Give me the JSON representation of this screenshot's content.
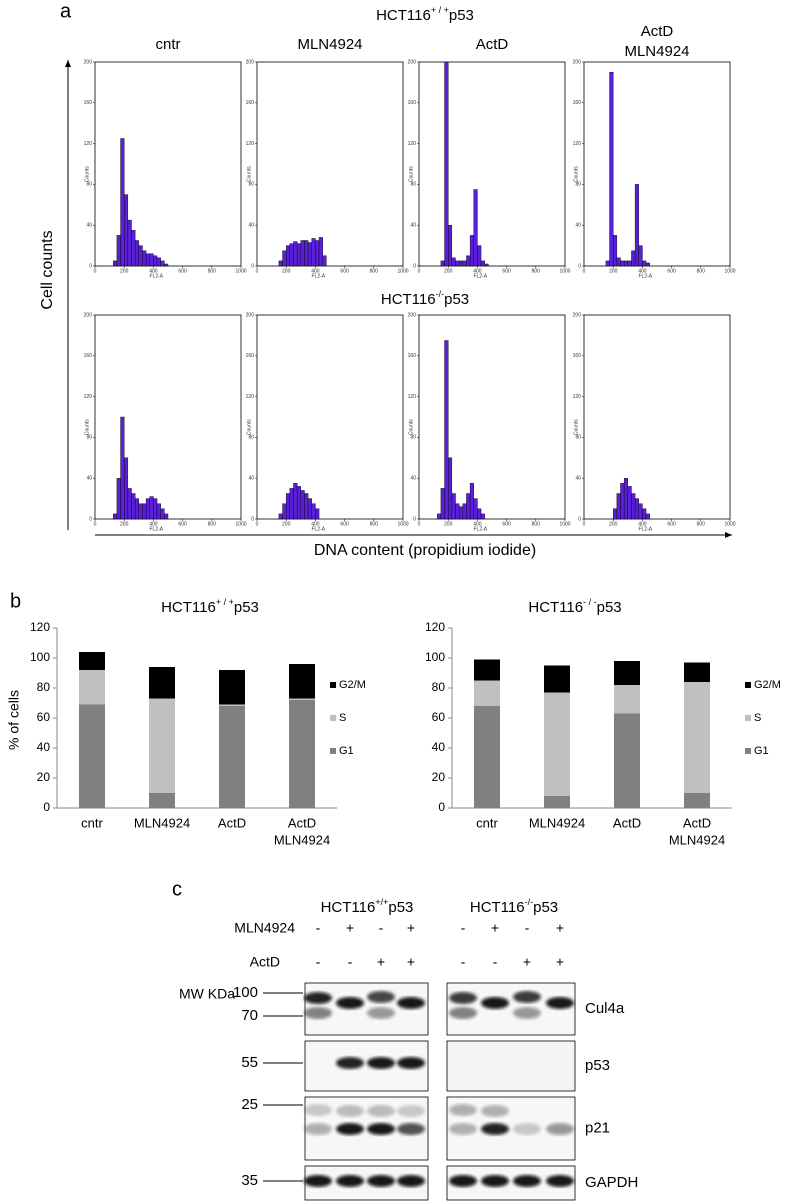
{
  "panel_a": {
    "letter": "a",
    "row_titles": [
      [
        "HCT116",
        "+ / +",
        "p53"
      ],
      [
        "HCT116",
        "-/-",
        "p53"
      ]
    ],
    "columns": [
      [
        "cntr"
      ],
      [
        "MLN4924"
      ],
      [
        "ActD"
      ],
      [
        "ActD",
        "MLN4924"
      ]
    ],
    "y_axis_label": "Cell counts",
    "x_axis_label": "DNA content (propidium iodide)",
    "histogram_axes": {
      "xlim": [
        0,
        1000
      ],
      "ylim": [
        0,
        200
      ],
      "xticks": [
        0,
        200,
        400,
        600,
        800,
        1000
      ],
      "yticks": [
        0,
        40,
        80,
        120,
        160,
        200
      ],
      "xlabel": "FL2-A",
      "ylabel": "Counts",
      "bins": [
        100,
        125,
        150,
        175,
        200,
        225,
        250,
        275,
        300,
        325,
        350,
        375,
        400,
        425,
        450,
        475,
        500,
        525,
        550
      ],
      "color": "#5a1fd8"
    },
    "histograms": [
      {
        "type": "histogram",
        "values": [
          0,
          5,
          30,
          125,
          70,
          45,
          35,
          25,
          20,
          15,
          12,
          12,
          10,
          8,
          5,
          2,
          0,
          0
        ]
      },
      {
        "type": "histogram",
        "values": [
          0,
          0,
          5,
          15,
          20,
          22,
          24,
          22,
          25,
          25,
          23,
          27,
          25,
          28,
          10,
          0,
          0,
          0
        ]
      },
      {
        "type": "histogram",
        "values": [
          0,
          0,
          5,
          200,
          40,
          8,
          5,
          5,
          5,
          10,
          30,
          75,
          20,
          5,
          2,
          0,
          0,
          0
        ]
      },
      {
        "type": "histogram",
        "values": [
          0,
          0,
          5,
          190,
          30,
          8,
          5,
          5,
          5,
          15,
          80,
          20,
          5,
          3,
          0,
          0,
          0,
          0
        ]
      },
      {
        "type": "histogram",
        "values": [
          0,
          5,
          40,
          100,
          60,
          30,
          25,
          20,
          15,
          15,
          20,
          22,
          20,
          15,
          10,
          5,
          0,
          0
        ]
      },
      {
        "type": "histogram",
        "values": [
          0,
          0,
          5,
          15,
          25,
          30,
          35,
          32,
          28,
          25,
          20,
          15,
          10,
          0,
          0,
          0,
          0,
          0
        ]
      },
      {
        "type": "histogram",
        "values": [
          0,
          5,
          30,
          175,
          60,
          25,
          15,
          12,
          15,
          25,
          35,
          20,
          10,
          5,
          0,
          0,
          0,
          0
        ]
      },
      {
        "type": "histogram",
        "values": [
          0,
          0,
          0,
          0,
          10,
          25,
          35,
          40,
          32,
          25,
          20,
          15,
          10,
          5,
          0,
          0,
          0,
          0
        ]
      }
    ]
  },
  "panel_b": {
    "letter": "b",
    "y_axis_label": "% of cells",
    "chart_data": [
      {
        "type": "stacked_bar",
        "title": [
          "HCT116",
          "+ / +",
          "p53"
        ],
        "categories": [
          [
            "cntr"
          ],
          [
            "MLN4924"
          ],
          [
            "ActD"
          ],
          [
            "ActD",
            "MLN4924"
          ]
        ],
        "series": [
          {
            "name": "G1",
            "color": "#808080",
            "values": [
              69,
              10,
              68,
              72
            ]
          },
          {
            "name": "S",
            "color": "#c0c0c0",
            "values": [
              23,
              63,
              1,
              1
            ]
          },
          {
            "name": "G2/M",
            "color": "#000000",
            "values": [
              12,
              21,
              23,
              23
            ]
          }
        ],
        "ylim": [
          0,
          120
        ],
        "yticks": [
          0,
          20,
          40,
          60,
          80,
          100,
          120
        ]
      },
      {
        "type": "stacked_bar",
        "title": [
          "HCT116",
          "- / -",
          "p53"
        ],
        "categories": [
          [
            "cntr"
          ],
          [
            "MLN4924"
          ],
          [
            "ActD"
          ],
          [
            "ActD",
            "MLN4924"
          ]
        ],
        "series": [
          {
            "name": "G1",
            "color": "#808080",
            "values": [
              68,
              8,
              63,
              10
            ]
          },
          {
            "name": "S",
            "color": "#c0c0c0",
            "values": [
              17,
              69,
              19,
              74
            ]
          },
          {
            "name": "G2/M",
            "color": "#000000",
            "values": [
              14,
              18,
              16,
              13
            ]
          }
        ],
        "ylim": [
          0,
          120
        ],
        "yticks": [
          0,
          20,
          40,
          60,
          80,
          100,
          120
        ]
      }
    ]
  },
  "panel_c": {
    "letter": "c",
    "groups": [
      [
        "HCT116",
        "+/+",
        "p53"
      ],
      [
        "HCT116",
        "-/-",
        "p53"
      ]
    ],
    "treatments": [
      {
        "label": "MLN4924",
        "signs": [
          "-",
          "+",
          "-",
          "+",
          "-",
          "+",
          "-",
          "+"
        ]
      },
      {
        "label": "ActD",
        "signs": [
          "-",
          "-",
          "+",
          "+",
          "-",
          "-",
          "+",
          "+"
        ]
      }
    ],
    "mw_label": "MW KDa",
    "markers": [
      100,
      70,
      55,
      25,
      35
    ],
    "proteins": [
      "Cul4a",
      "p53",
      "p21",
      "GAPDH"
    ]
  }
}
